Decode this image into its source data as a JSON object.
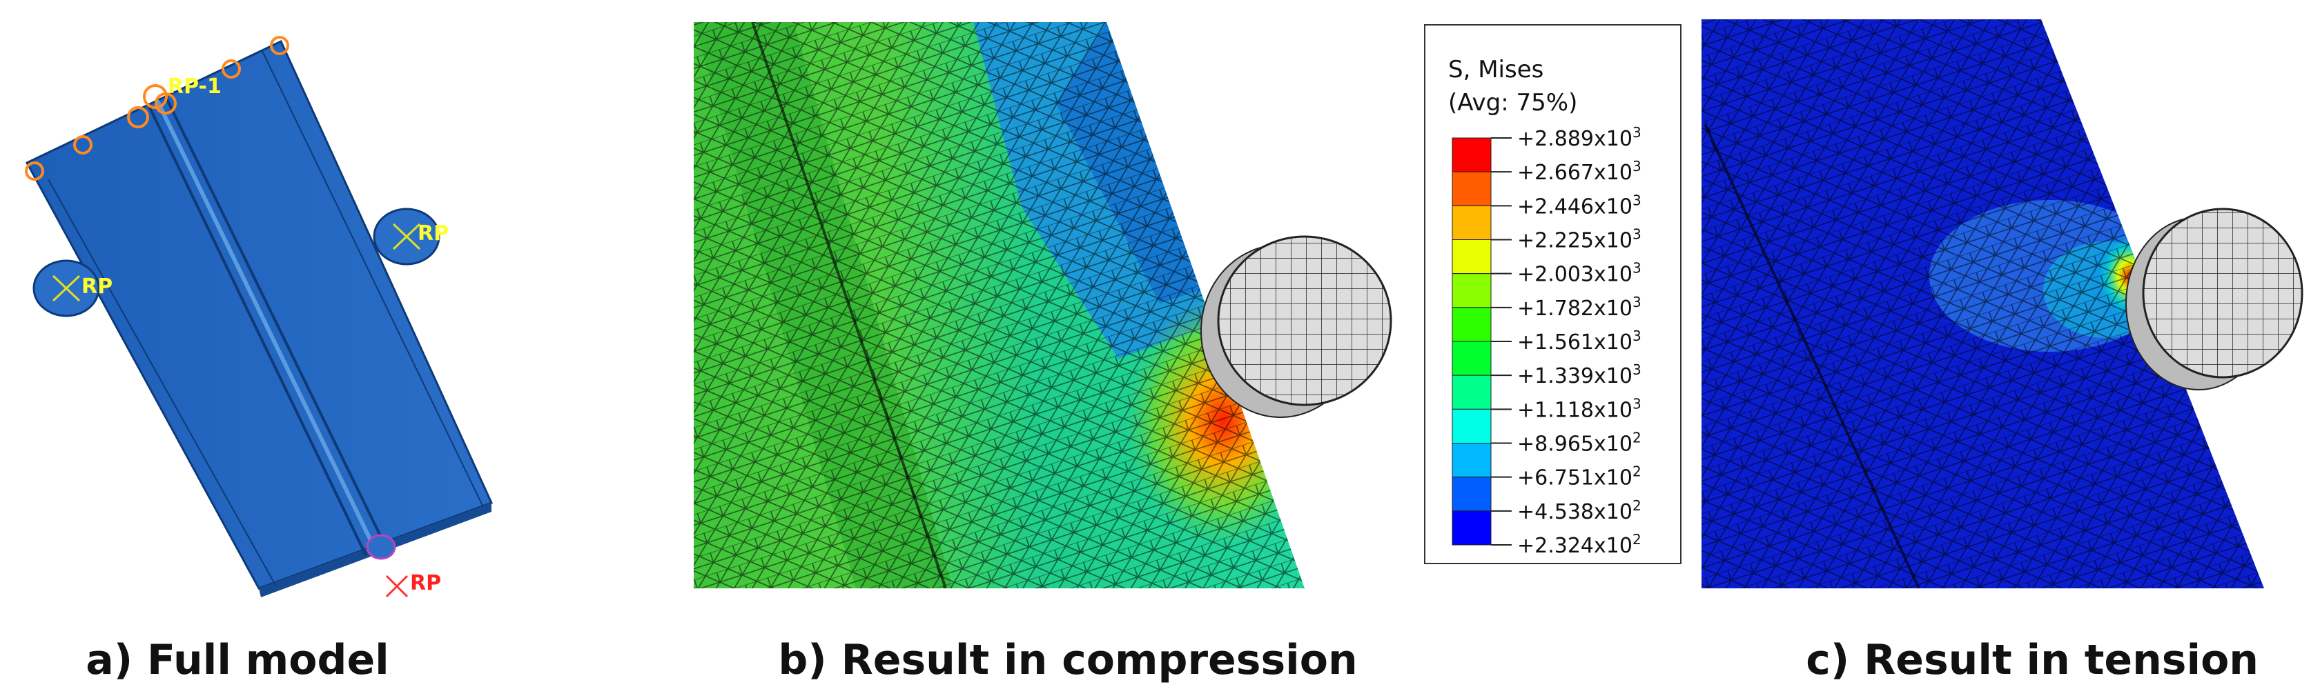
{
  "panels": [
    {
      "caption": "a) Full model",
      "labels": [
        "RP-1",
        "RP",
        "RP",
        "RP"
      ]
    },
    {
      "caption": "b) Result in compression"
    },
    {
      "caption": "c) Result in tension"
    }
  ],
  "legend": {
    "title": "S, Mises",
    "subtitle": "(Avg: 75%)",
    "levels": [
      {
        "mantissa": "+2.889x10",
        "exponent": "3"
      },
      {
        "mantissa": "+2.667x10",
        "exponent": "3"
      },
      {
        "mantissa": "+2.446x10",
        "exponent": "3"
      },
      {
        "mantissa": "+2.225x10",
        "exponent": "3"
      },
      {
        "mantissa": "+2.003x10",
        "exponent": "3"
      },
      {
        "mantissa": "+1.782x10",
        "exponent": "3"
      },
      {
        "mantissa": "+1.561x10",
        "exponent": "3"
      },
      {
        "mantissa": "+1.339x10",
        "exponent": "3"
      },
      {
        "mantissa": "+1.118x10",
        "exponent": "3"
      },
      {
        "mantissa": "+8.965x10",
        "exponent": "2"
      },
      {
        "mantissa": "+6.751x10",
        "exponent": "2"
      },
      {
        "mantissa": "+4.538x10",
        "exponent": "2"
      },
      {
        "mantissa": "+2.324x10",
        "exponent": "2"
      }
    ],
    "colors": [
      "#ff0000",
      "#ff5d00",
      "#ffb900",
      "#e7ff00",
      "#8bff00",
      "#2eff00",
      "#00ff2e",
      "#00ff8b",
      "#00ffe7",
      "#00b9ff",
      "#005dff",
      "#0000ff"
    ]
  }
}
